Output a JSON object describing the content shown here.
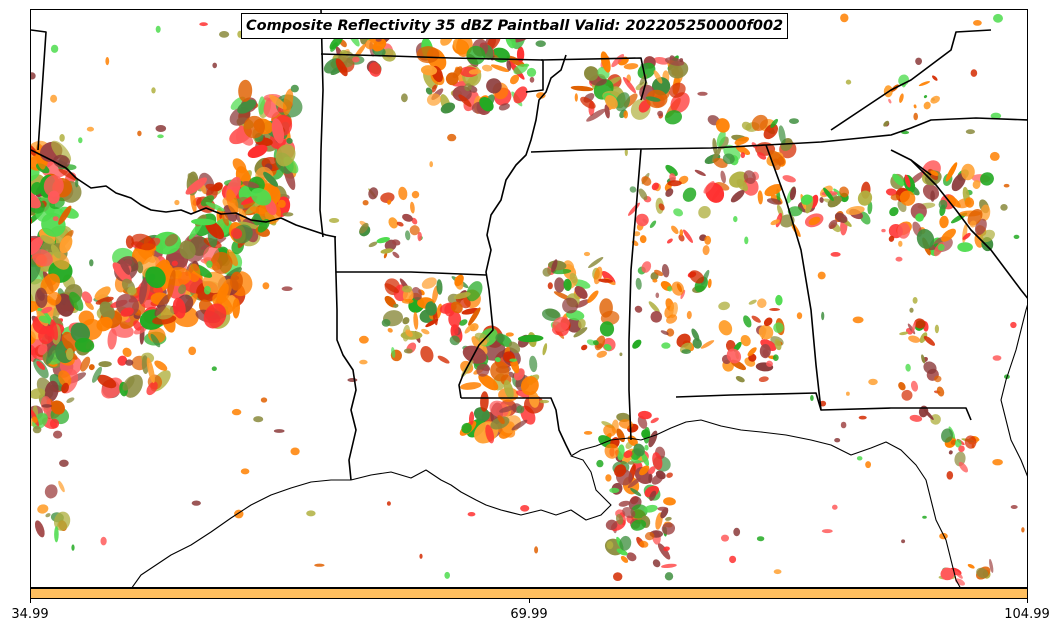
{
  "map": {
    "title": "Composite Reflectivity 35 dBZ Paintball Valid: 202205250000f002",
    "colors": {
      "member_colors": [
        "#ff8000",
        "#ff8000",
        "#e06000",
        "#d42a00",
        "#ff3030",
        "#ff5a5a",
        "#4ddc4d",
        "#22aa22",
        "#3f8f3f",
        "#8a8a3c",
        "#b0b040",
        "#a04545",
        "#8b3a3a",
        "#ffa030"
      ],
      "colorbar_fill": "#ffbf5f",
      "boundary": "#000000"
    }
  },
  "colorbar": {
    "ticks": [
      "34.99",
      "69.99",
      "104.99"
    ]
  }
}
